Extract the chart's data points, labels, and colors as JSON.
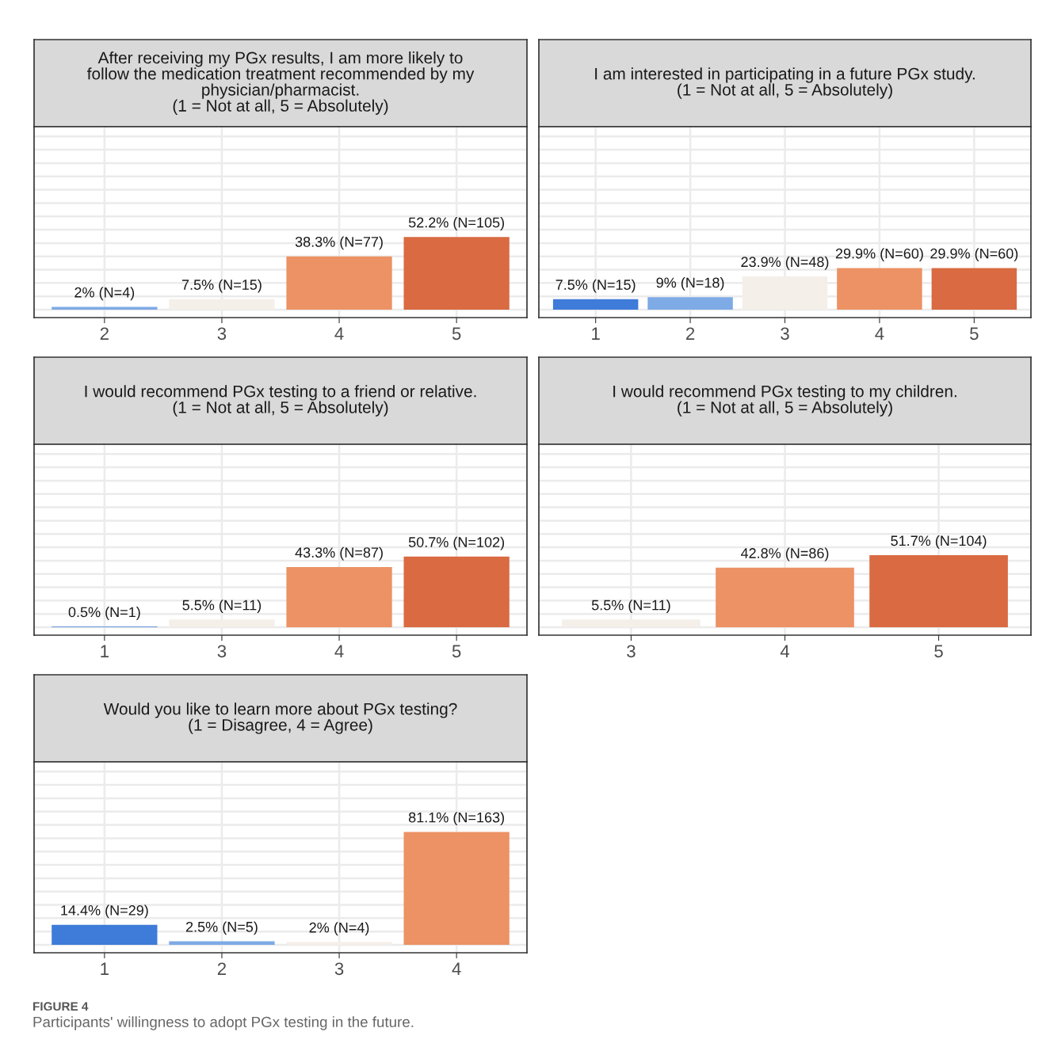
{
  "chart_data": [
    {
      "type": "bar",
      "title": "After receiving my PGx results, I am more likely to\nfollow the medication treatment recommended by my\nphysician/pharmacist.\n(1 = Not at all, 5 = Absolutely)",
      "categories": [
        "2",
        "3",
        "4",
        "5"
      ],
      "values": [
        2,
        7.5,
        38.3,
        52.2
      ],
      "colors": [
        "#7eaae6",
        "#f5efe9",
        "#ec9264",
        "#d96a42"
      ],
      "value_labels": [
        "2% (N=4)",
        "7.5% (N=15)",
        "38.3% (N=77)",
        "52.2% (N=105)"
      ],
      "grid": true,
      "tick_labels": "x"
    },
    {
      "type": "bar",
      "title": "I am interested in participating in a future PGx study.\n(1 = Not at all, 5 = Absolutely)",
      "categories": [
        "1",
        "2",
        "3",
        "4",
        "5"
      ],
      "values": [
        7.5,
        9,
        23.9,
        29.9,
        29.9
      ],
      "colors": [
        "#3f7bd9",
        "#7eaae6",
        "#f5efe9",
        "#ec9264",
        "#d96a42"
      ],
      "value_labels": [
        "7.5% (N=15)",
        "9% (N=18)",
        "23.9% (N=48)",
        "29.9% (N=60)",
        "29.9% (N=60)"
      ],
      "grid": true,
      "tick_labels": "x"
    },
    {
      "type": "bar",
      "title": "I would recommend PGx testing to a friend or relative.\n(1 = Not at all, 5 = Absolutely)",
      "categories": [
        "1",
        "3",
        "4",
        "5"
      ],
      "values": [
        0.5,
        5.5,
        43.3,
        50.7
      ],
      "colors": [
        "#3f7bd9",
        "#f5efe9",
        "#ec9264",
        "#d96a42"
      ],
      "value_labels": [
        "0.5% (N=1)",
        "5.5% (N=11)",
        "43.3% (N=87)",
        "50.7% (N=102)"
      ],
      "grid": true,
      "tick_labels": "x"
    },
    {
      "type": "bar",
      "title": "I would recommend PGx testing to my children.\n(1 = Not at all, 5 = Absolutely)",
      "categories": [
        "3",
        "4",
        "5"
      ],
      "values": [
        5.5,
        42.8,
        51.7
      ],
      "colors": [
        "#f5efe9",
        "#ec9264",
        "#d96a42"
      ],
      "value_labels": [
        "5.5% (N=11)",
        "42.8% (N=86)",
        "51.7% (N=104)"
      ],
      "grid": true,
      "tick_labels": "x"
    },
    {
      "type": "bar",
      "title": "Would you like to learn more about PGx testing?\n(1 = Disagree, 4 = Agree)",
      "categories": [
        "1",
        "2",
        "3",
        "4"
      ],
      "values": [
        14.4,
        2.5,
        2,
        81.1
      ],
      "colors": [
        "#3f7bd9",
        "#7eaae6",
        "#f5efe9",
        "#ec9264"
      ],
      "value_labels": [
        "14.4% (N=29)",
        "2.5% (N=5)",
        "2% (N=4)",
        "81.1% (N=163)"
      ],
      "grid": true,
      "tick_labels": "x",
      "annotations": [
        "FIGURE 4",
        "Participants' willingness to adopt PGx testing in the future."
      ]
    }
  ]
}
